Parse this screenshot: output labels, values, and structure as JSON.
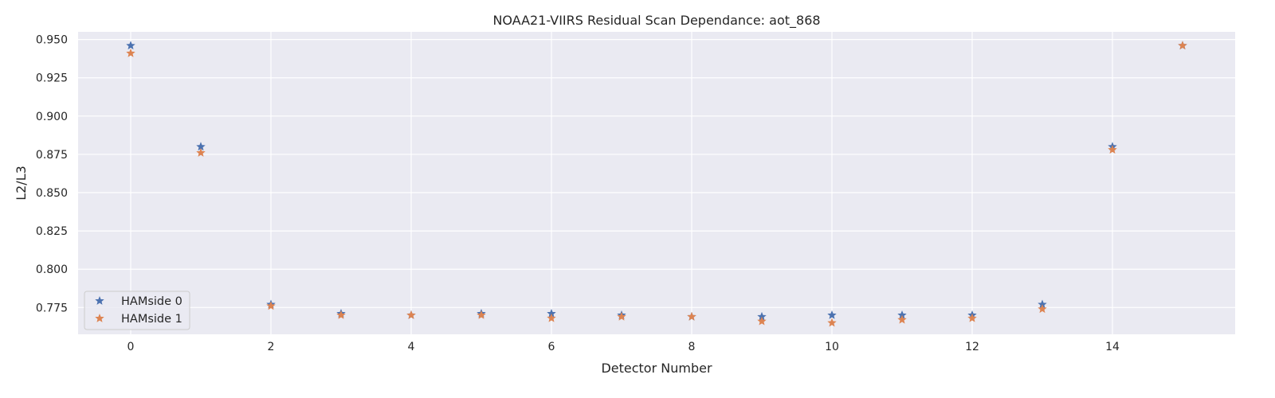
{
  "chart_data": {
    "type": "scatter",
    "title": "NOAA21-VIIRS Residual Scan Dependance: aot_868",
    "xlabel": "Detector Number",
    "ylabel": "L2/L3",
    "xlim": [
      -0.75,
      15.75
    ],
    "ylim": [
      0.7575,
      0.955
    ],
    "x_ticks": [
      0,
      2,
      4,
      6,
      8,
      10,
      12,
      14
    ],
    "y_ticks": [
      0.775,
      0.8,
      0.825,
      0.85,
      0.875,
      0.9,
      0.925,
      0.95
    ],
    "x_tick_labels": [
      "0",
      "2",
      "4",
      "6",
      "8",
      "10",
      "12",
      "14"
    ],
    "y_tick_labels": [
      "0.775",
      "0.800",
      "0.825",
      "0.850",
      "0.875",
      "0.900",
      "0.925",
      "0.950"
    ],
    "grid": true,
    "legend_position": "lower-left",
    "marker": "star",
    "x": [
      0,
      1,
      2,
      3,
      4,
      5,
      6,
      7,
      8,
      9,
      10,
      11,
      12,
      13,
      14,
      15
    ],
    "series": [
      {
        "name": "HAMside 0",
        "color": "#4c72b0",
        "values": [
          0.946,
          0.88,
          0.777,
          0.771,
          0.77,
          0.771,
          0.771,
          0.77,
          0.769,
          0.769,
          0.77,
          0.77,
          0.77,
          0.777,
          0.88,
          0.946
        ]
      },
      {
        "name": "HAMside 1",
        "color": "#dd8452",
        "values": [
          0.941,
          0.876,
          0.776,
          0.77,
          0.77,
          0.77,
          0.768,
          0.769,
          0.769,
          0.766,
          0.765,
          0.767,
          0.768,
          0.774,
          0.878,
          0.946
        ]
      }
    ],
    "background_color": "#eaeaf2",
    "grid_color": "#ffffff"
  }
}
